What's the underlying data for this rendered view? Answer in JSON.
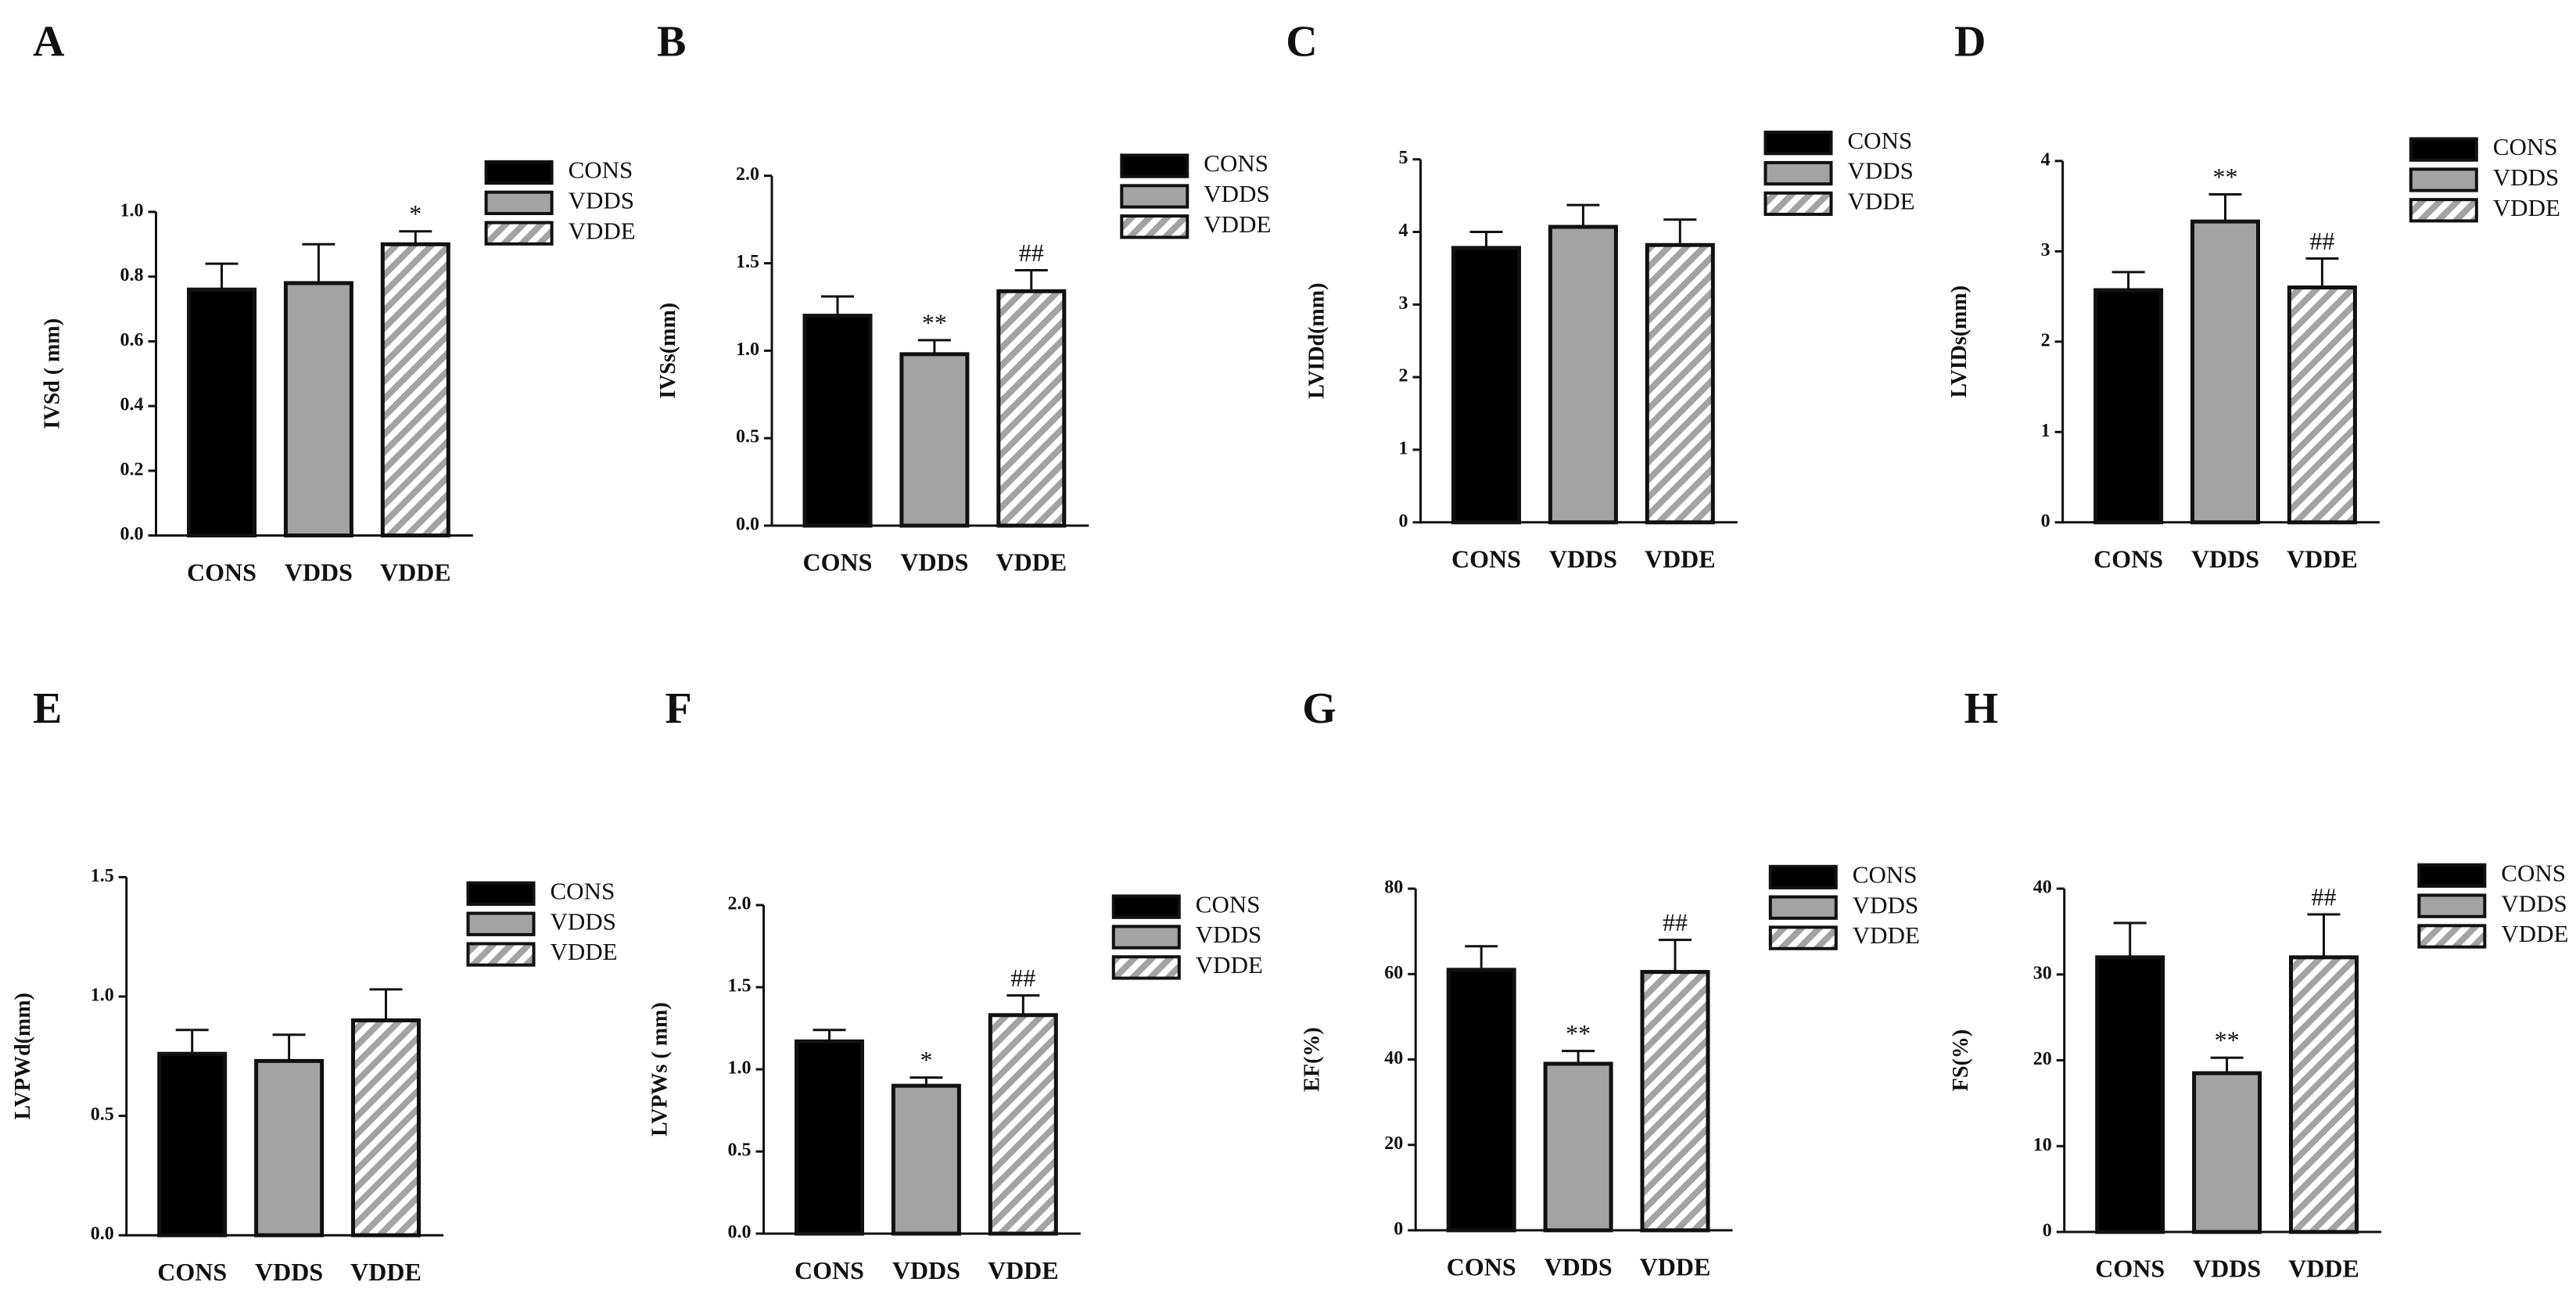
{
  "chart_data": [
    {
      "type": "bar",
      "panel": "A",
      "ylabel": "IVSd ( mm)",
      "categories": [
        "CONS",
        "VDDS",
        "VDDE"
      ],
      "values": [
        0.76,
        0.78,
        0.9
      ],
      "errors": [
        0.08,
        0.12,
        0.04
      ],
      "annotations": [
        null,
        null,
        "*"
      ],
      "colors": [
        "#000000",
        "#a3a3a3",
        "#a3a3a3"
      ],
      "patterns": [
        null,
        null,
        "diagonal"
      ],
      "ylim": [
        0,
        1.0
      ],
      "yticks": [
        {
          "value": 0,
          "label": "0.0"
        },
        {
          "value": 0.2,
          "label": "0.2"
        },
        {
          "value": 0.4,
          "label": "0.4"
        },
        {
          "value": 0.6,
          "label": "0.6"
        },
        {
          "value": 0.8,
          "label": "0.8"
        },
        {
          "value": 1.0,
          "label": "1.0"
        }
      ]
    },
    {
      "type": "bar",
      "panel": "B",
      "ylabel": "IVSs(mm)",
      "categories": [
        "CONS",
        "VDDS",
        "VDDE"
      ],
      "values": [
        1.2,
        0.98,
        1.34
      ],
      "errors": [
        0.11,
        0.08,
        0.12
      ],
      "annotations": [
        null,
        "**",
        "##"
      ],
      "colors": [
        "#000000",
        "#a3a3a3",
        "#a3a3a3"
      ],
      "patterns": [
        null,
        null,
        "diagonal"
      ],
      "ylim": [
        0,
        2.0
      ],
      "yticks": [
        {
          "value": 0,
          "label": "0.0"
        },
        0.5,
        {
          "value": 1.0,
          "label": "1.0"
        },
        1.5,
        {
          "value": 2.0,
          "label": "2.0"
        }
      ]
    },
    {
      "type": "bar",
      "panel": "C",
      "ylabel": "LVIDd(mm)",
      "categories": [
        "CONS",
        "VDDS",
        "VDDE"
      ],
      "values": [
        3.78,
        4.07,
        3.82
      ],
      "errors": [
        0.22,
        0.3,
        0.35
      ],
      "annotations": [
        null,
        null,
        null
      ],
      "colors": [
        "#000000",
        "#a3a3a3",
        "#a3a3a3"
      ],
      "patterns": [
        null,
        null,
        "diagonal"
      ],
      "ylim": [
        0,
        5
      ],
      "yticks": [
        0,
        1,
        2,
        3,
        4,
        5
      ]
    },
    {
      "type": "bar",
      "panel": "D",
      "ylabel": "LVIDs(mm)",
      "categories": [
        "CONS",
        "VDDS",
        "VDDE"
      ],
      "values": [
        2.57,
        3.33,
        2.6
      ],
      "errors": [
        0.2,
        0.3,
        0.32
      ],
      "annotations": [
        null,
        "**",
        "##"
      ],
      "colors": [
        "#000000",
        "#a3a3a3",
        "#a3a3a3"
      ],
      "patterns": [
        null,
        null,
        "diagonal"
      ],
      "ylim": [
        0,
        4
      ],
      "yticks": [
        0,
        1,
        2,
        3,
        4
      ]
    },
    {
      "type": "bar",
      "panel": "E",
      "ylabel": "LVPWd(mm)",
      "categories": [
        "CONS",
        "VDDS",
        "VDDE"
      ],
      "values": [
        0.76,
        0.73,
        0.9
      ],
      "errors": [
        0.1,
        0.11,
        0.13
      ],
      "annotations": [
        null,
        null,
        null
      ],
      "colors": [
        "#000000",
        "#a3a3a3",
        "#a3a3a3"
      ],
      "patterns": [
        null,
        null,
        "diagonal"
      ],
      "ylim": [
        0,
        1.5
      ],
      "yticks": [
        {
          "value": 0,
          "label": "0.0"
        },
        0.5,
        {
          "value": 1.0,
          "label": "1.0"
        },
        1.5
      ]
    },
    {
      "type": "bar",
      "panel": "F",
      "ylabel": "LVPWs ( mm)",
      "categories": [
        "CONS",
        "VDDS",
        "VDDE"
      ],
      "values": [
        1.17,
        0.9,
        1.33
      ],
      "errors": [
        0.07,
        0.05,
        0.12
      ],
      "annotations": [
        null,
        "*",
        "##"
      ],
      "colors": [
        "#000000",
        "#a3a3a3",
        "#a3a3a3"
      ],
      "patterns": [
        null,
        null,
        "diagonal"
      ],
      "ylim": [
        0,
        2.0
      ],
      "yticks": [
        {
          "value": 0,
          "label": "0.0"
        },
        0.5,
        {
          "value": 1.0,
          "label": "1.0"
        },
        1.5,
        {
          "value": 2.0,
          "label": "2.0"
        }
      ]
    },
    {
      "type": "bar",
      "panel": "G",
      "ylabel": "EF(%)",
      "categories": [
        "CONS",
        "VDDS",
        "VDDE"
      ],
      "values": [
        61,
        39,
        60.5
      ],
      "errors": [
        5.5,
        3,
        7.5
      ],
      "annotations": [
        null,
        "**",
        "##"
      ],
      "colors": [
        "#000000",
        "#a3a3a3",
        "#a3a3a3"
      ],
      "patterns": [
        null,
        null,
        "diagonal"
      ],
      "ylim": [
        0,
        80
      ],
      "yticks": [
        0,
        20,
        40,
        60,
        80
      ]
    },
    {
      "type": "bar",
      "panel": "H",
      "ylabel": "FS(%)",
      "categories": [
        "CONS",
        "VDDS",
        "VDDE"
      ],
      "values": [
        32,
        18.5,
        32
      ],
      "errors": [
        4,
        1.8,
        5
      ],
      "annotations": [
        null,
        "**",
        "##"
      ],
      "colors": [
        "#000000",
        "#a3a3a3",
        "#a3a3a3"
      ],
      "patterns": [
        null,
        null,
        "diagonal"
      ],
      "ylim": [
        0,
        40
      ],
      "yticks": [
        0,
        10,
        20,
        30,
        40
      ]
    }
  ]
}
